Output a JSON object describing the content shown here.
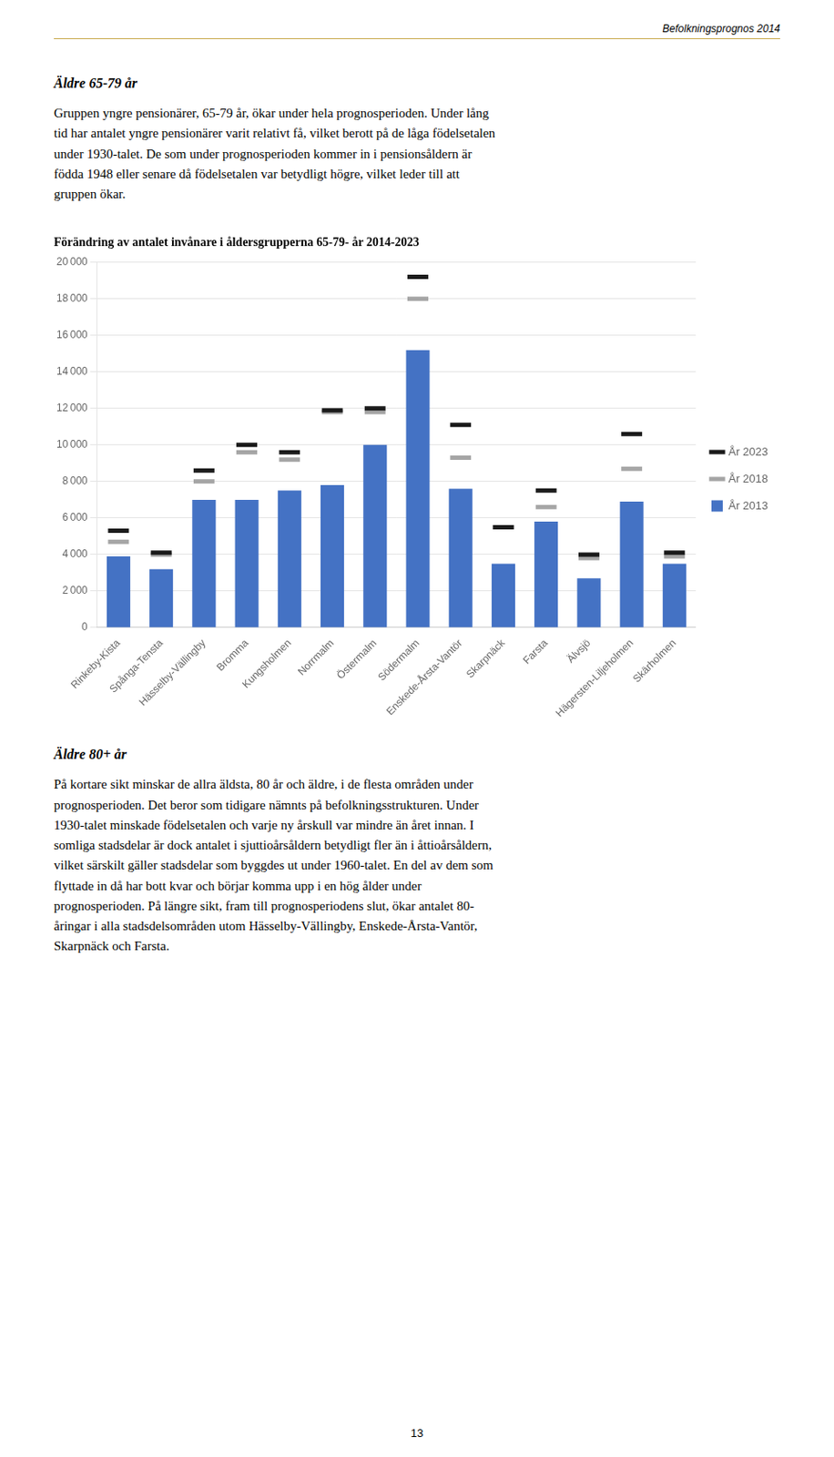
{
  "header": "Befolkningsprognos 2014",
  "page_number": "13",
  "sections_before": [
    {
      "heading": "Äldre 65-79 år",
      "lines": [
        "Gruppen yngre pensionärer, 65-79 år, ökar under hela prognosperioden. Under lång",
        "tid har antalet yngre pensionärer varit relativt få, vilket berott på de låga födelsetalen",
        "under 1930-talet. De som under prognosperioden kommer in i pensionsåldern är",
        "födda 1948 eller senare då födelsetalen var betydligt högre, vilket leder till att",
        "gruppen ökar."
      ]
    }
  ],
  "sections_after": [
    {
      "heading": "Äldre 80+ år",
      "lines": [
        "På kortare sikt minskar de allra äldsta, 80 år och äldre, i de flesta områden under",
        "prognosperioden. Det beror som tidigare nämnts på befolkningsstrukturen. Under",
        "1930-talet minskade födelsetalen och varje ny årskull var mindre än året innan. I",
        "somliga stadsdelar är dock antalet i sjuttioårsåldern betydligt fler än i åttioårsåldern,",
        "vilket särskilt gäller stadsdelar som byggdes ut under 1960-talet. En del av dem som",
        "flyttade in då har bott kvar och börjar komma upp i en hög ålder under",
        "prognosperioden. På längre sikt, fram till prognosperiodens slut, ökar antalet 80-",
        "åringar i alla stadsdelsområden utom Hässelby-Vällingby, Enskede-Årsta-Vantör,",
        "Skarpnäck och Farsta."
      ]
    }
  ],
  "chart_data": {
    "type": "bar",
    "title": "Förändring av antalet invånare i åldersgrupperna 65-79- år 2014-2023",
    "categories": [
      "Rinkeby-Kista",
      "Spånga-Tensta",
      "Hässelby-Vällingby",
      "Bromma",
      "Kungsholmen",
      "Norrmalm",
      "Östermalm",
      "Södermalm",
      "Enskede-Årsta-Vantör",
      "Skarpnäck",
      "Farsta",
      "Älvsjö",
      "Hägersten-Liljeholmen",
      "Skärholmen"
    ],
    "series": [
      {
        "name": "År 2013",
        "type": "bar",
        "color": "#4472C4",
        "values": [
          3900,
          3200,
          7000,
          7000,
          7500,
          7800,
          10000,
          15200,
          7600,
          3500,
          5800,
          2700,
          6900,
          3500
        ]
      },
      {
        "name": "År 2018",
        "type": "line",
        "marker": "dash",
        "line_style": "none",
        "color": "#A5A5A5",
        "values": [
          4700,
          4000,
          8000,
          9600,
          9200,
          11800,
          11800,
          18000,
          9300,
          5500,
          6600,
          3800,
          8700,
          3900
        ]
      },
      {
        "name": "År 2023",
        "type": "line",
        "marker": "dash",
        "line_style": "none",
        "color": "#1A1A1A",
        "values": [
          5300,
          4100,
          8600,
          10000,
          9600,
          11900,
          12000,
          19200,
          11100,
          5500,
          7500,
          4000,
          10600,
          4100
        ]
      }
    ],
    "ylim": [
      0,
      20000
    ],
    "yticks": [
      0,
      {
        "value": 2000,
        "label": "2 000"
      },
      {
        "value": 4000,
        "label": "4 000"
      },
      {
        "value": 6000,
        "label": "6 000"
      },
      {
        "value": 8000,
        "label": "8 000"
      },
      {
        "value": 10000,
        "label": "10 000"
      },
      {
        "value": 12000,
        "label": "12 000"
      },
      {
        "value": 14000,
        "label": "14 000"
      },
      {
        "value": 16000,
        "label": "16 000"
      },
      {
        "value": 18000,
        "label": "18 000"
      },
      {
        "value": 20000,
        "label": "20 000"
      }
    ],
    "grid": true,
    "legend": "right"
  }
}
